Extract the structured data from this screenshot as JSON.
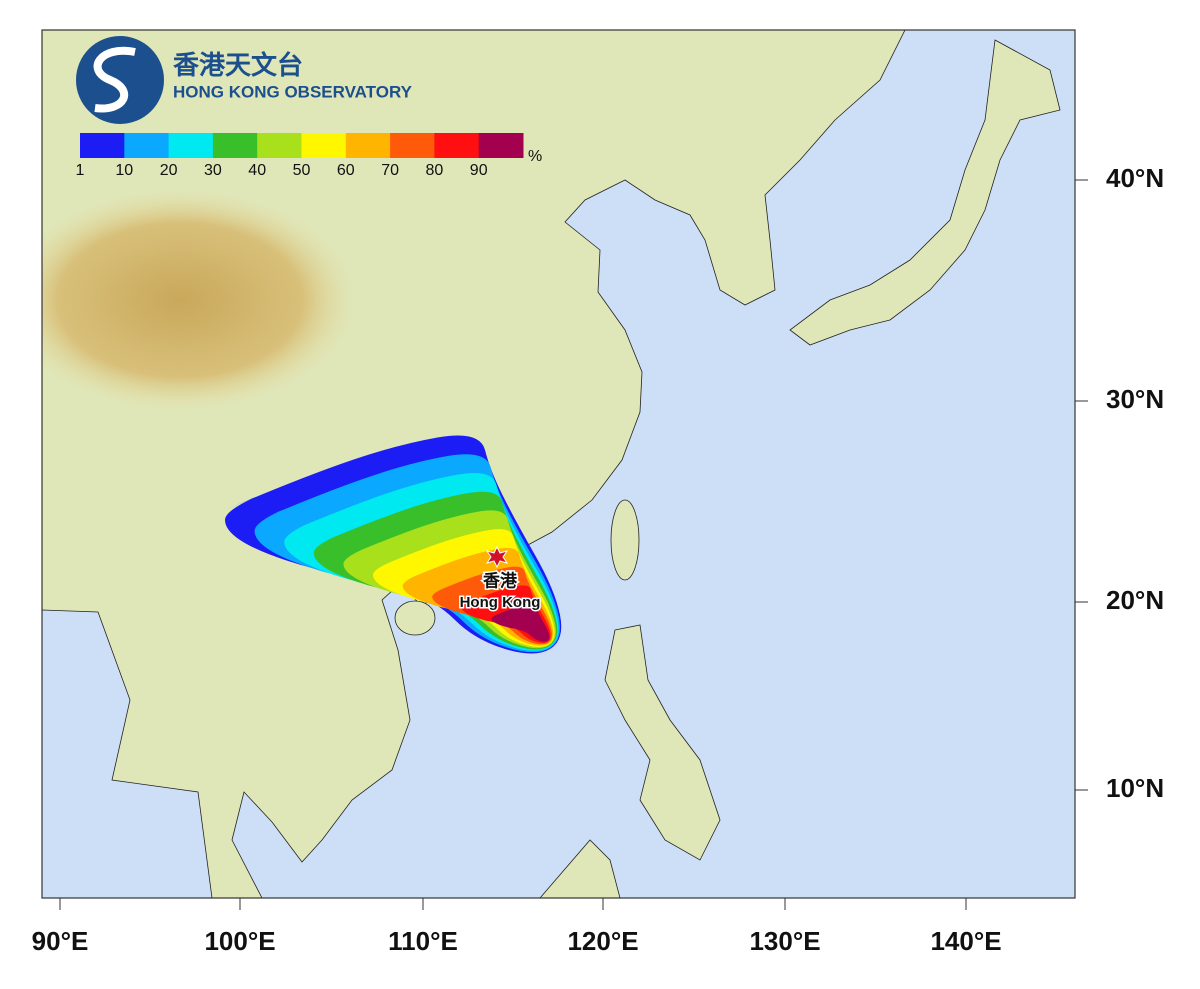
{
  "logo": {
    "chinese": "香港天文台",
    "english": "HONG KONG OBSERVATORY"
  },
  "legend": {
    "labels": [
      1,
      10,
      20,
      30,
      40,
      50,
      60,
      70,
      80,
      90
    ],
    "unit": "%",
    "colors": [
      "#1c1cf5",
      "#0aa8ff",
      "#00e8f0",
      "#38bf2a",
      "#a8e01c",
      "#fff700",
      "#ffb400",
      "#ff5a0a",
      "#ff0f0f",
      "#a3004f"
    ]
  },
  "map": {
    "latitude_labels": [
      "40°N",
      "30°N",
      "20°N",
      "10°N"
    ],
    "longitude_labels": [
      "90°E",
      "100°E",
      "110°E",
      "120°E",
      "130°E",
      "140°E"
    ]
  },
  "place": {
    "chinese": "香港",
    "english": "Hong Kong"
  }
}
